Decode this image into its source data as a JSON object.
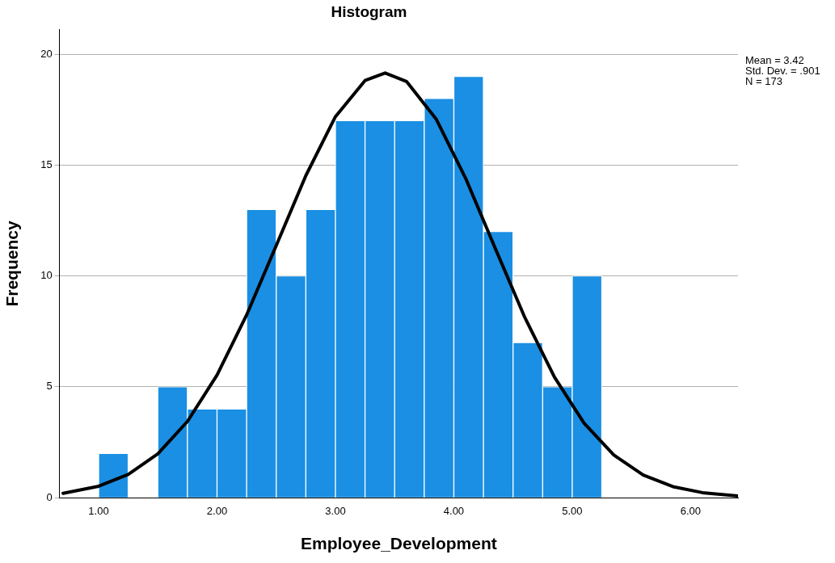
{
  "chart_data": {
    "type": "histogram",
    "title": "Histogram",
    "xlabel": "Employee_Development",
    "ylabel": "Frequency",
    "xlim": [
      0.67,
      6.4
    ],
    "ylim": [
      0,
      21.1
    ],
    "xticks": [
      {
        "value": 1,
        "label": "1.00"
      },
      {
        "value": 2,
        "label": "2.00"
      },
      {
        "value": 3,
        "label": "3.00"
      },
      {
        "value": 4,
        "label": "4.00"
      },
      {
        "value": 5,
        "label": "5.00"
      },
      {
        "value": 6,
        "label": "6.00"
      }
    ],
    "yticks": [
      0,
      5,
      10,
      15,
      20
    ],
    "grid": "y",
    "legend": false,
    "annotations": [
      "Mean = 3.42",
      "Std. Dev. = .901",
      "N = 173"
    ],
    "series": [
      {
        "color": "#1a8fe3",
        "bins": [
          1,
          1.25,
          1.5,
          1.75,
          2,
          2.25,
          2.5,
          2.75,
          3,
          3.25,
          3.5,
          3.75,
          4,
          4.25,
          4.5,
          4.75,
          5,
          5.25
        ],
        "values": [
          2,
          0,
          5,
          4,
          4,
          13,
          10,
          13,
          17,
          17,
          17,
          18,
          19,
          12,
          7,
          5,
          10
        ]
      },
      {
        "type": "line",
        "color": "#000000",
        "marker": "none",
        "x": [
          0.7,
          1,
          1.25,
          1.5,
          1.75,
          2,
          2.25,
          2.5,
          2.75,
          3,
          3.25,
          3.42,
          3.6,
          3.85,
          4.1,
          4.35,
          4.6,
          4.85,
          5.1,
          5.35,
          5.6,
          5.85,
          6.1,
          6.4
        ],
        "values": [
          0.2,
          0.52,
          1.05,
          1.98,
          3.44,
          5.53,
          8.24,
          11.37,
          14.52,
          17.18,
          18.81,
          19.15,
          18.77,
          17.08,
          14.4,
          11.24,
          8.12,
          5.44,
          3.36,
          1.93,
          1.02,
          0.5,
          0.23,
          0.08
        ]
      }
    ]
  }
}
